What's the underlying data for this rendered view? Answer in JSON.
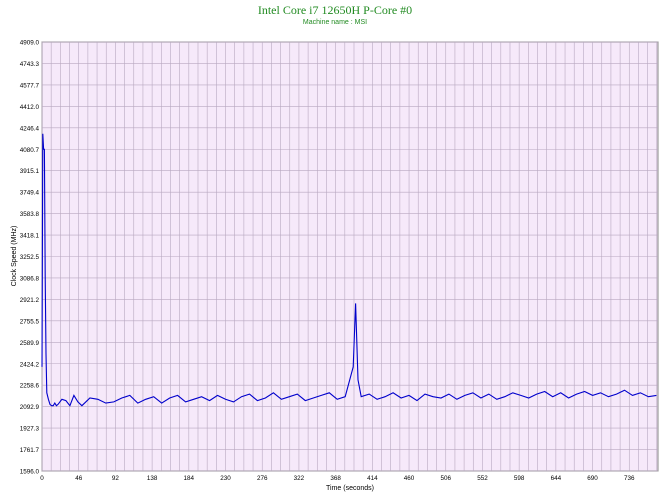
{
  "chart_data": {
    "type": "line",
    "title": "Intel Core i7 12650H P-Core #0",
    "subtitle": "Machine name : MSI",
    "xlabel": "Time (seconds)",
    "ylabel": "Clock Speed (MHz)",
    "xlim": [
      0,
      772
    ],
    "ylim": [
      1596.0,
      4909.0
    ],
    "x_ticks": [
      "0",
      "46",
      "92",
      "138",
      "184",
      "230",
      "276",
      "322",
      "368",
      "414",
      "460",
      "506",
      "552",
      "598",
      "644",
      "690",
      "736"
    ],
    "y_ticks": [
      "1596.0",
      "1761.7",
      "1927.3",
      "2092.9",
      "2258.6",
      "2424.2",
      "2589.9",
      "2755.5",
      "2921.2",
      "3086.8",
      "3252.5",
      "3418.1",
      "3583.8",
      "3749.4",
      "3915.1",
      "4080.7",
      "4246.4",
      "4412.0",
      "4577.7",
      "4743.3",
      "4909.0"
    ],
    "grid": true,
    "colors": {
      "line": "#0000cc",
      "plot_bg": "#f6e9fa",
      "grid": "#b8a8c0",
      "title": "#228b22"
    },
    "series": [
      {
        "x": [
          0,
          1,
          2,
          3,
          4,
          5,
          6,
          8,
          10,
          12,
          14,
          16,
          18,
          20,
          25,
          30,
          35,
          40,
          45,
          50,
          60,
          70,
          80,
          90,
          100,
          110,
          120,
          130,
          140,
          150,
          160,
          170,
          180,
          190,
          200,
          210,
          220,
          230,
          240,
          250,
          260,
          270,
          280,
          290,
          300,
          310,
          320,
          330,
          340,
          350,
          360,
          370,
          380,
          390,
          393,
          396,
          400,
          410,
          420,
          430,
          440,
          450,
          460,
          470,
          480,
          490,
          500,
          510,
          520,
          530,
          540,
          550,
          560,
          570,
          580,
          590,
          600,
          610,
          620,
          630,
          640,
          650,
          660,
          670,
          680,
          690,
          700,
          710,
          720,
          730,
          740,
          750,
          760,
          770
        ],
        "values": [
          2400,
          4200,
          4080,
          4080,
          3100,
          2500,
          2200,
          2150,
          2110,
          2100,
          2100,
          2120,
          2100,
          2110,
          2150,
          2140,
          2100,
          2180,
          2130,
          2100,
          2160,
          2150,
          2120,
          2130,
          2160,
          2180,
          2120,
          2150,
          2170,
          2120,
          2160,
          2180,
          2130,
          2150,
          2170,
          2140,
          2180,
          2150,
          2130,
          2170,
          2190,
          2140,
          2160,
          2200,
          2150,
          2170,
          2190,
          2140,
          2160,
          2180,
          2200,
          2150,
          2170,
          2400,
          2890,
          2300,
          2170,
          2190,
          2150,
          2170,
          2200,
          2160,
          2180,
          2140,
          2190,
          2170,
          2160,
          2190,
          2150,
          2180,
          2200,
          2160,
          2190,
          2150,
          2170,
          2200,
          2180,
          2160,
          2190,
          2210,
          2170,
          2200,
          2160,
          2190,
          2210,
          2180,
          2200,
          2170,
          2190,
          2220,
          2180,
          2200,
          2170,
          2180
        ]
      }
    ]
  }
}
